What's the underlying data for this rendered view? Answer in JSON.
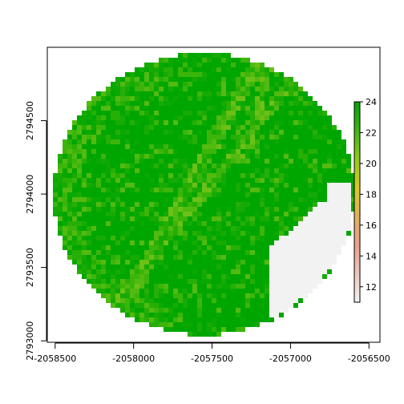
{
  "chart_data": {
    "type": "heatmap",
    "title": "",
    "xlabel": "",
    "ylabel": "",
    "xlim": [
      -2058550,
      -2056430
    ],
    "ylim": [
      2792990,
      2795000
    ],
    "x_ticks": [
      -2058500,
      -2058000,
      -2057500,
      -2057000,
      -2056500
    ],
    "x_tick_labels": [
      "-2058500",
      "-2058000",
      "-2057500",
      "-2057000",
      "-2056500"
    ],
    "y_ticks": [
      2793000,
      2793500,
      2794000,
      2794500
    ],
    "y_tick_labels": [
      "2793000",
      "2793500",
      "2794000",
      "2794500"
    ],
    "raster": {
      "mask": "circle",
      "center": [
        -2057550,
        2794000
      ],
      "radius": 960,
      "dominant_value": 23,
      "value_range": [
        11,
        24
      ],
      "nodata_region": "lower-right, value ~11 (light gray)"
    },
    "legend": {
      "placement": "right",
      "ticks": [
        12,
        14,
        16,
        18,
        20,
        22,
        24
      ],
      "tick_labels": [
        "12",
        "14",
        "16",
        "18",
        "20",
        "22",
        "24"
      ],
      "range": [
        11,
        24
      ],
      "colors": [
        "#F2F2F2",
        "#EDC7BE",
        "#E8A08A",
        "#E1B25C",
        "#D9C928",
        "#8FCB19",
        "#3CB80F",
        "#00A600"
      ]
    },
    "colors": {
      "high": "#00A600",
      "mid": "#4BB50C",
      "low": "#F2F2F2"
    }
  }
}
